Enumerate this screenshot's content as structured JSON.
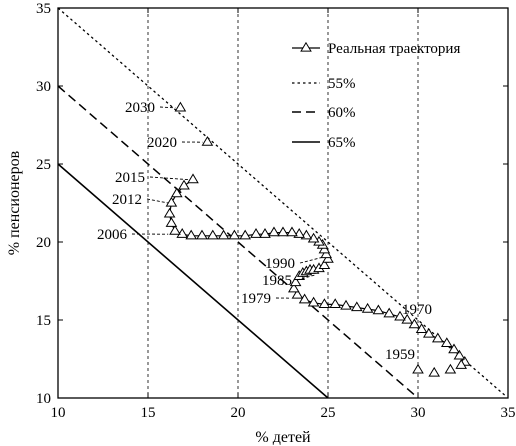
{
  "chart_data": {
    "type": "line",
    "xlabel": "% детей",
    "ylabel": "% пенсионеров",
    "xlim": [
      10,
      35
    ],
    "ylim": [
      10,
      35
    ],
    "xticks": [
      10,
      15,
      20,
      25,
      30,
      35
    ],
    "yticks": [
      10,
      15,
      20,
      25,
      30,
      35
    ],
    "vertical_gridlines": [
      15,
      20,
      25,
      30
    ],
    "legend_position": "top-right",
    "series": [
      {
        "name": "Реальная траектория",
        "style": "solid-triangle-markers",
        "x": [
          32.6,
          32.3,
          32.0,
          31.6,
          31.1,
          30.6,
          30.2,
          29.8,
          29.4,
          29.0,
          28.4,
          27.8,
          27.2,
          26.6,
          26.0,
          25.4,
          24.8,
          24.2,
          23.7,
          23.3,
          23.1,
          23.2,
          23.4,
          23.6,
          23.8,
          24.0,
          24.2,
          24.5,
          24.8,
          25.0,
          24.9,
          24.8,
          24.7,
          24.5,
          24.2,
          23.8,
          23.4,
          23.0,
          22.5,
          22.0,
          21.5,
          21.0,
          20.4,
          19.8,
          19.2,
          18.6,
          18.0,
          17.4,
          16.9,
          16.5,
          16.3,
          16.2,
          16.3,
          16.6,
          17.0,
          17.5
        ],
        "y": [
          12.3,
          12.7,
          13.1,
          13.5,
          13.8,
          14.1,
          14.4,
          14.7,
          15.0,
          15.2,
          15.4,
          15.6,
          15.7,
          15.8,
          15.9,
          16.0,
          16.0,
          16.1,
          16.3,
          16.6,
          17.0,
          17.4,
          17.8,
          18.0,
          18.1,
          18.2,
          18.2,
          18.3,
          18.5,
          18.9,
          19.2,
          19.5,
          19.8,
          20.0,
          20.2,
          20.4,
          20.5,
          20.6,
          20.6,
          20.6,
          20.5,
          20.5,
          20.4,
          20.4,
          20.4,
          20.4,
          20.4,
          20.4,
          20.5,
          20.7,
          21.2,
          21.8,
          22.5,
          23.1,
          23.6,
          24.0
        ]
      },
      {
        "name": "",
        "style": "isolated-triangle-markers",
        "x": [
          18.3,
          16.8,
          30.0,
          30.9,
          31.8,
          32.4
        ],
        "y": [
          26.4,
          28.6,
          11.8,
          11.6,
          11.8,
          12.1
        ]
      },
      {
        "name": "55%",
        "style": "dotted",
        "x": [
          10,
          34.9
        ],
        "y": [
          35,
          10.1
        ]
      },
      {
        "name": "60%",
        "style": "dashed",
        "x": [
          10,
          30
        ],
        "y": [
          30,
          10
        ]
      },
      {
        "name": "65%",
        "style": "solid",
        "x": [
          10,
          25
        ],
        "y": [
          25,
          10
        ]
      }
    ],
    "annotations": [
      {
        "text": "2030",
        "x": 16.8,
        "y": 28.6
      },
      {
        "text": "2020",
        "x": 18.3,
        "y": 26.4
      },
      {
        "text": "2015",
        "x": 17.5,
        "y": 24.0
      },
      {
        "text": "2012",
        "x": 16.4,
        "y": 22.5
      },
      {
        "text": "2006",
        "x": 16.4,
        "y": 20.5
      },
      {
        "text": "1990",
        "x": 24.9,
        "y": 19.0
      },
      {
        "text": "1985",
        "x": 24.6,
        "y": 17.9
      },
      {
        "text": "1979",
        "x": 23.2,
        "y": 16.4
      },
      {
        "text": "1970",
        "x": 30.1,
        "y": 14.5
      },
      {
        "text": "1959",
        "x": 30.0,
        "y": 11.8
      }
    ]
  }
}
